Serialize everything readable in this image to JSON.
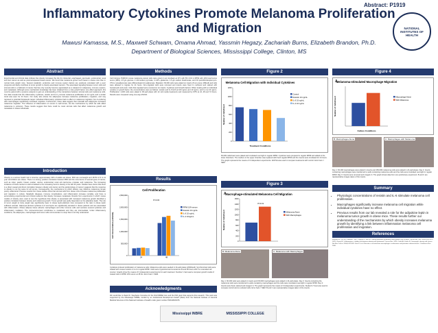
{
  "header": {
    "abstract_id": "Abstract: P1919",
    "title_line1": "Inflammatory Cytokines Promote Melanoma Proliferation",
    "title_line2": "and Migration",
    "authors": "Mawusi Kamassa, M.S., Maxwell Schwam, Omama Ahmad, Yassmin Hegazy, Zachariah Burns, Elizabeth Brandon, Ph.D.",
    "affiliation": "Department of Biological Sciences, Mississippi College, Clinton, MS",
    "logo_text": "NATIONAL INSTITUTES OF HEALTH"
  },
  "sections": {
    "abstract": "Abstract",
    "introduction": "Introduction",
    "methods": "Methods",
    "results": "Results",
    "acknowledgments": "Acknowledgments",
    "figure2": "Figure 2",
    "figure3": "Figure 3",
    "figure4": "Figure 4",
    "summary": "Summary",
    "references": "References"
  },
  "abstract_text": "Experimental and clinical data indicate that obesity increases the risk for colorectal, esophageal, pancreatic, endometrial, renal and liver cancer as well as postmenopausal breast cancer. We found that melanoma grows much faster in obese mice than in normal body weight mice. Several metabolic, endocrine and immune system factors are positively correlated with a poor prognosis and likely contribute to tumor growth in obesity associated cancers. The associated signaling between tumor cells and stromal cells is a hallmark of cancer that has only recently become appreciated as a catalyst for malignancy, immune evasion, and metastasis. Although some mechanistic knowledge has been obtained from a mice growth factor, one effect approach, this must be paired with a systems analysis to gain an understanding of the interactions between stromal cells and melanoma cells. Our data reveals that the inflammatory cytokines, resistin and IL-6, promote melanoma proliferation at 12 ng/mL and a similar trend was seen for 24 hours. Our study also shows the adipocytes increase melanoma proliferation, migration, and may represent a potential therapeutic target. Individual inflammatory cytokines had no effect on melanoma migration, but co-culturing with macrophages significantly increased migration. Furthermore, these data suggest that crosstalk with adipocytes increases melanoma migration. The influence of inflammation on tumors is well known, but the mechanisms by which fat cells affect melanoma is unknown. These results suggest that there could be novel stromal cells that affect melanoma growth and metastasis in obese individuals.",
  "intro_text": "Obesity is a serious health risk in America, approximately 32% of adults are obese. 69% are overweight and 18.5% of 6 to 11 year old children are obese. There is a strong, positive correlation between BMI and the occurrence of several types of cancer, such as colon, gastric, breast, ovarian, uterine, endometrial, renal cell carcinoma, prostate, and melanoma. The increasing incidence of these cancers is well correlated to the increasing trend in obesity in the last 30 years. Studies have shown that there is a direct causal and direct correlation between obesity and cancer and the epidemiology of cancer suggests that the response to obesity is not the same for all tumors. Consequently, the mechanisms by which obesity may influence melanoma remain poorly understood. Previous results from these studies show that stromal cells from obese mice increase melanoma proliferation and migration in culture. Metabolic diseases, immune complications, and inflammation increase mortality, and there is accumulating experimental and clinical evidence that obesity increases metastasis. Results from experiments in which mouse models of obesity were used to test the hypothesis that obesity is associated with increased melanoma growth identified a positive correlation between obesity and melanoma growth. Tumor growth was partly dependent on the adipokine leptin. The role of tumor weight to body weight was significantly lower in obese leptin-deficient mice compared to the ratio in obese leptin sufficient animals. Adipocyte-derived cytokines IL-6 and leptin are significantly elevated in obese patients and are associated with inflammation. Obese adipose tissue attracts macrophages and other immune cells and secretes several cytokines and inflammatory mediators. The microenvironment contributes to metastasis and they are intermediate. Under inflammatory conditions, the adipocytes, macrophages and tumor cells communicate in a loop that is not fully understood.",
  "methods_text": "Cell Cultures: B16F10 mouse melanoma cancer cells were grown in an incubator at 37C with 5% CO2 in RPMI with 10% fetal bovine serum (FBS), 4.5 g/L glucose, 2 mM sodium pyruvate, 4 mM L-glutamine, 1.5 g/L sodium bicarbonate, and 1% penicillin/streptomycin. 3T3-L1 preadipocytes were differentiated into adipocytes. Migration: 60,000 cells were plated on inserts (8 um pores, Millicell) and cells were allowed to migrate for 24 hours. Non-migrated cells were removed and inserts were fixed in methanol and stained with hematoxylin and eosin. Cells that migrated were counted on six inserts. Cytokines and Growth Factors: When treating with an individual cytokine or growth factor, the concentrations were as follows: resistin and IL-6 both at 100 ng/mL and 10 ng/mL, and IL-4 at 10 ng/mL. Proliferation: 2,000 cells were plated in 96-well plates with 12 cell media treatments and measured by MTS at 24, 48 and 72 hours. Results were compared using one-way ANOVA.",
  "ack_text": "We would like to thank Dr. Stephanie Cornelius for the NIH INBRE Core and the P20 grant that supports this research. This work was supported by the Mississippi INBRE, funded by an Institutional Development Award (IDeA) from the National Institute of General Medical Sciences of the National Institutes of Health under grant number P20GM103476.",
  "fig2_caption": "60,000 cells/insert were plated and incubated overnight in regular RPMI. Cytokines were prepared in regular RPMI and added to the lower chambers. The medium in the upper chamber was replaced with fresh regular RPMI and the inserts were incubated for 24 hours. The graph represents the means of 3 independent experiments. ANOVA was used to compare treatments with control. Error bars = SEM",
  "fig3_caption": "Day 1: 60,000 cells were plated in inserts and 150,000 macrophages were plated in 24-well plates. Day 2: Inserts containing the melanoma cells were transferred to wells containing macrophages and the cells were incubated overnight in regular RPMI. Day 3: Inserts were fixed, stained and imaged. A: The graph represents the means of 3 independent experiments. Student's T-test was used to compare control and co-cultured cells. Error bars = SEM. B and C are representative images taken of the inserts.",
  "fig1_caption": "Cytokines induced proliferation of melanoma cells. Melanoma cells were seeded in 24-well plates (2000/well). Synchronized cells were treated with mouse resistin or IL-6 in regular RPMI. Cells were trypsinized and counted at 24 and 48 hours with 3 or extended cell counter. Graphs show the means of 3 independent experiments for each treatment. Number 1 had used a computer growth model of treated cells in RPMI 10% serum at 48 hrs. Error bars = SEM.",
  "fig4_caption": "Day 1: 60,000 macrophages were plated in inserts and 150,000 melanoma cells were plated in 24-well plates. Day 2: Inserts containing macrophages were transferred to wells containing melanoma cells and the cells were incubated overnight in regular RPMI. Day 3: Inserts were removed and imaged. A: The graph shows data from one preliminary experiment. B and C are representative images taken of the inserts.",
  "summary": [
    "Physiologic concentrations of resistin and IL-6 stimulate melanoma cell proliferation.",
    "Macrophages significantly increase melanoma cell migration while individual cytokines have no effect.",
    "Previous results from our lab revealed a role for the adipokine leptin in melanoma tumor growth in obese mice. These results further our understanding of the mechanisms by which obesity increases melanoma growth by identifying a link between inflammation melanoma cell proliferation and migration."
  ],
  "references_text": "Brandon EL, Gu JW, Cantwell L, He Z, Wallace K, Hall JE. Obesity promotes melanoma tumor growth: role of leptin. Cancer Biol Ther. 2009;8(19):1871-1879. Chang SC. Inflammation: a hidden link between obesity and melanoma? Cancer Res. 2014. Calle EE, Kaaks R. Overweight, obesity and cancer. Nat Rev Cancer. 2004;4:579-591. Kim KY et al. Resistin is secreted from macrophages in atheromas and promotes atherosclerosis. Cardiovasc Res. 2006.",
  "logos": [
    "Mississippi INBRE",
    "MISSISSIPPI COLLEGE"
  ],
  "chart_data": [
    {
      "type": "bar",
      "title": "Melanoma Cell Migration with Individual Cytokines",
      "xlabel": "Treatment Conditions",
      "ylabel": "Number of Cells/Insert",
      "ylim": [
        0,
        1200
      ],
      "yticks": [
        0,
        200,
        400,
        600,
        800,
        1000,
        1200
      ],
      "categories": [
        "Control",
        "Resistin 10 ng/mL",
        "IL-6 10 ng/mL",
        "IL-4 10 ng/mL"
      ],
      "values": [
        760,
        720,
        700,
        520
      ],
      "colors": [
        "#2d4fa0",
        "#3a6bbf",
        "#ff9500",
        "#8ab5e8"
      ]
    },
    {
      "type": "bar",
      "title": "Cell Proliferation",
      "xlabel": "",
      "ylabel": "Cell Concentration (cells/mL)",
      "ylim": [
        0,
        2500000
      ],
      "yticks_labels": [
        "0",
        "500,000",
        "1,000,000",
        "1,500,000",
        "2,000,000",
        "2,500,000"
      ],
      "categories": [
        "24",
        "48"
      ],
      "series": [
        {
          "name": "RPMI 10% serum",
          "values": [
            300000,
            1350000
          ],
          "color": "#2d4fa0"
        },
        {
          "name": "Resistin 10 ng/mL",
          "values": [
            320000,
            1600000
          ],
          "color": "#3a6bbf"
        },
        {
          "name": "IL-6 10 ng/mL",
          "values": [
            330000,
            1650000
          ],
          "color": "#ff9500"
        },
        {
          "name": "IL-4 10ng/mL",
          "values": [
            310000,
            1450000
          ],
          "color": "#8ab5e8"
        }
      ],
      "annotation": "P=0.03"
    },
    {
      "type": "bar",
      "title": "Macrophage-stimulated Melanoma Cell Migration",
      "xlabel": "",
      "ylabel": "Number of Cells/Insert",
      "ylim": [
        0,
        1600
      ],
      "yticks": [
        0,
        200,
        400,
        600,
        800,
        1000,
        1200,
        1400,
        1600
      ],
      "categories": [
        ""
      ],
      "series": [
        {
          "name": "Melanoma Alone",
          "values": [
            700
          ],
          "color": "#2d4fa0"
        },
        {
          "name": "With Macrophages",
          "values": [
            1300
          ],
          "color": "#e2542a"
        }
      ],
      "annotation": "P=0.01"
    },
    {
      "type": "bar",
      "title": "Melanoma-stimulated Macrophage Migration",
      "xlabel": "Culture Conditions",
      "ylabel": "Number of Cells/Insert",
      "ylim": [
        0,
        600
      ],
      "categories": [
        ""
      ],
      "series": [
        {
          "name": "Macrophage Alone",
          "values": [
            350
          ],
          "color": "#2d4fa0"
        },
        {
          "name": "With Melanoma",
          "values": [
            500
          ],
          "color": "#e2542a"
        }
      ]
    }
  ],
  "panel_labels": {
    "f3a": "A",
    "f3b": "B: Melanoma Alone",
    "f3c": "C: Melanoma with Macrophages",
    "f4a": "A",
    "f4b": "B: Macrophages Alone",
    "f4c": "C: Macrophages with Melanoma"
  }
}
